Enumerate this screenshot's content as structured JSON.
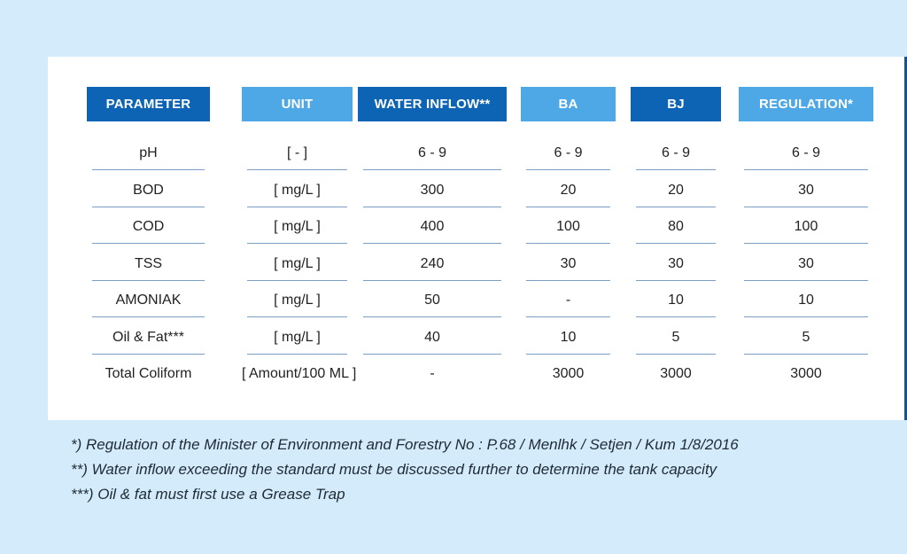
{
  "columns": [
    {
      "key": "parameter",
      "label": "PARAMETER",
      "style": "dark"
    },
    {
      "key": "unit",
      "label": "UNIT",
      "style": "light"
    },
    {
      "key": "water_inflow",
      "label": "WATER INFLOW**",
      "style": "dark"
    },
    {
      "key": "ba",
      "label": "BA",
      "style": "light"
    },
    {
      "key": "bj",
      "label": "BJ",
      "style": "dark"
    },
    {
      "key": "regulation",
      "label": "REGULATION*",
      "style": "light"
    }
  ],
  "rows": [
    {
      "parameter": "pH",
      "unit": "[ - ]",
      "water_inflow": "6 - 9",
      "ba": "6 - 9",
      "bj": "6 - 9",
      "regulation": "6 - 9"
    },
    {
      "parameter": "BOD",
      "unit": "[ mg/L ]",
      "water_inflow": "300",
      "ba": "20",
      "bj": "20",
      "regulation": "30"
    },
    {
      "parameter": "COD",
      "unit": "[ mg/L ]",
      "water_inflow": "400",
      "ba": "100",
      "bj": "80",
      "regulation": "100"
    },
    {
      "parameter": "TSS",
      "unit": "[ mg/L ]",
      "water_inflow": "240",
      "ba": "30",
      "bj": "30",
      "regulation": "30"
    },
    {
      "parameter": "AMONIAK",
      "unit": "[ mg/L ]",
      "water_inflow": "50",
      "ba": "-",
      "bj": "10",
      "regulation": "10"
    },
    {
      "parameter": "Oil & Fat***",
      "unit": "[ mg/L ]",
      "water_inflow": "40",
      "ba": "10",
      "bj": "5",
      "regulation": "5"
    },
    {
      "parameter": "Total Coliform",
      "unit": "[ Amount/100 ML ]",
      "water_inflow": "-",
      "ba": "3000",
      "bj": "3000",
      "regulation": "3000"
    }
  ],
  "footnotes": [
    "*) Regulation of the Minister of Environment and Forestry No : P.68 / Menlhk / Setjen / Kum 1/8/2016",
    "**) Water inflow exceeding the standard must be discussed further to determine the tank capacity",
    "***) Oil & fat must first use a Grease Trap"
  ],
  "colors": {
    "header_dark": "#0d63b4",
    "header_light": "#4fa8e6",
    "background": "#d3ebfa",
    "divider": "#7b9ec4"
  }
}
